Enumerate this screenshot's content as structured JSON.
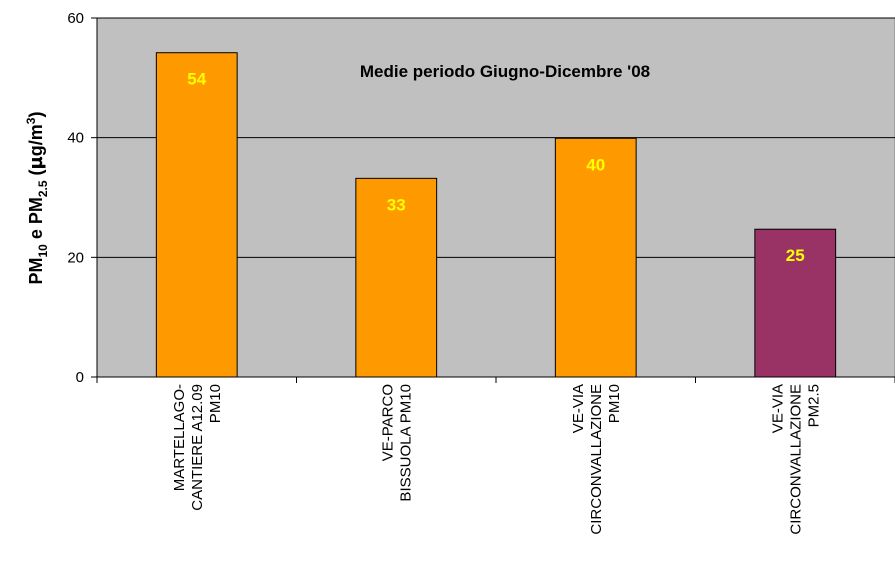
{
  "chart_data": {
    "type": "bar",
    "title": "Medie periodo Giugno-Dicembre '08",
    "ylabel": {
      "p1": "PM",
      "s1": "10",
      "p2": " e PM",
      "s2": "2.5",
      "p3": " (",
      "mu": "µ",
      "p4": "g/m",
      "sup": "3",
      "p5": ")"
    },
    "ylim": [
      0,
      60
    ],
    "yticks": [
      0,
      20,
      40,
      60
    ],
    "grid": true,
    "categories": [
      [
        "MARTELLAGO-",
        "CANTIERE A12.09",
        "PM10"
      ],
      [
        "VE-PARCO",
        "BISSUOLA PM10"
      ],
      [
        "VE-VIA",
        "CIRCONVALLAZIONE",
        "PM10"
      ],
      [
        "VE-VIA",
        "CIRCONVALLAZIONE",
        "PM2.5"
      ]
    ],
    "values": [
      54.2,
      33.2,
      39.9,
      24.7
    ],
    "labels": [
      "54",
      "33",
      "40",
      "25"
    ],
    "colors": {
      "plot_bg": "#c0c0c0",
      "bars": [
        "#ff9900",
        "#ff9900",
        "#ff9900",
        "#993366"
      ],
      "label_color": "#ffff00"
    }
  }
}
